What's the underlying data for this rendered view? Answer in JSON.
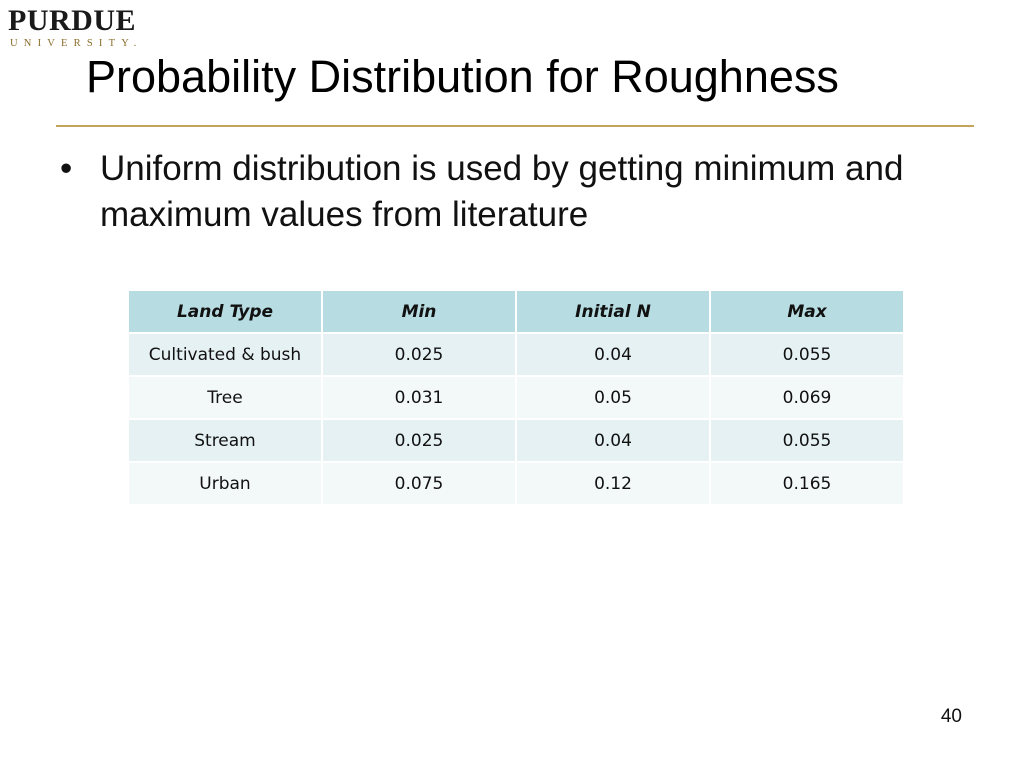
{
  "logo": {
    "main": "PURDUE",
    "sub": "UNIVERSITY."
  },
  "title": "Probability Distribution for Roughness",
  "bullet": {
    "marker": "•",
    "text": "Uniform distribution is used by getting minimum and maximum values from literature"
  },
  "table": {
    "headers": [
      "Land Type",
      "Min",
      "Initial N",
      "Max"
    ],
    "rows": [
      [
        "Cultivated & bush",
        "0.025",
        "0.04",
        "0.055"
      ],
      [
        "Tree",
        "0.031",
        "0.05",
        "0.069"
      ],
      [
        "Stream",
        "0.025",
        "0.04",
        "0.055"
      ],
      [
        "Urban",
        "0.075",
        "0.12",
        "0.165"
      ]
    ]
  },
  "page_number": "40",
  "colors": {
    "accent_rule": "#c3a45a",
    "table_header": "#b7dde3",
    "table_row_odd": "#e6f1f3",
    "table_row_even": "#f3f8f9"
  }
}
